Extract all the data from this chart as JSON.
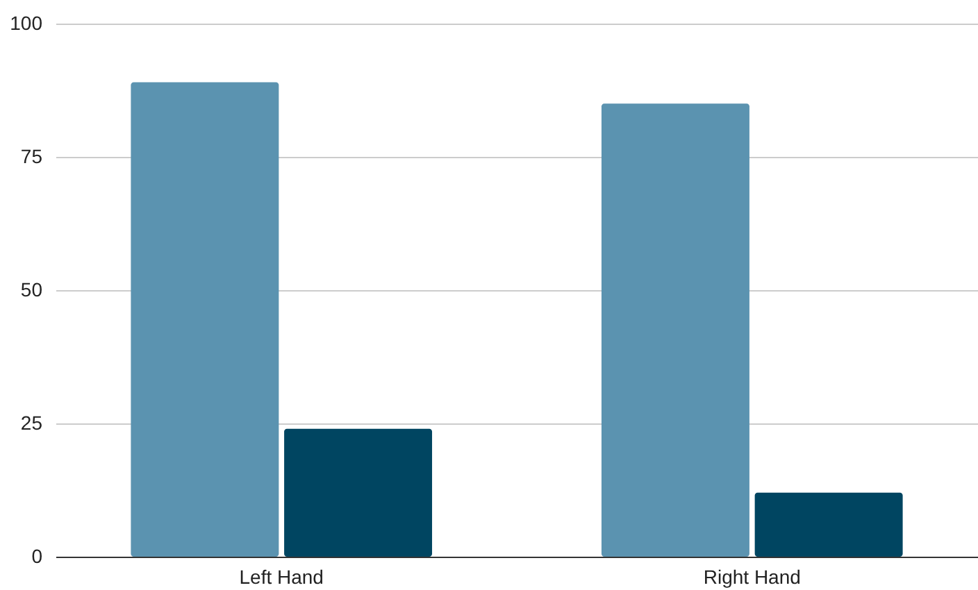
{
  "chart_data": {
    "type": "bar",
    "categories": [
      "Left Hand",
      "Right Hand"
    ],
    "series": [
      {
        "color": "#5b93b0",
        "values": [
          89,
          85
        ]
      },
      {
        "color": "#004561",
        "values": [
          24,
          12
        ]
      }
    ],
    "ylim": [
      0,
      100
    ],
    "yticks": [
      0,
      25,
      50,
      75,
      100
    ],
    "grid": "y"
  }
}
